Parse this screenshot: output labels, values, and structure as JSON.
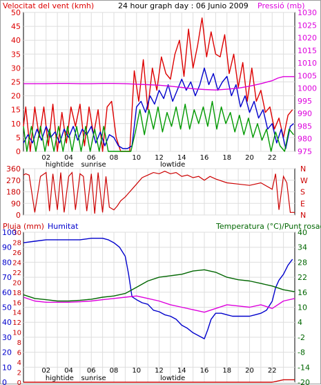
{
  "colors": {
    "wind_gust": "#dd0000",
    "wind_avg": "#0000cc",
    "wind_dir": "#009900",
    "pressure": "#dd00dd",
    "humidity": "#0000cc",
    "temperature": "#006600",
    "dewpoint": "#dd00dd",
    "rain": "#cc0000",
    "direction": "#cc0000",
    "frame": "#000000",
    "grid": "#dddddd"
  },
  "chart_data": [
    {
      "type": "line",
      "title": "24 hour graph day : 06 Junio 2009",
      "ylabel": "Velocitat del vent (kmh)",
      "ylabel_right": "Pressió (mb)",
      "ylim": [
        0,
        50
      ],
      "ylim_right": [
        975,
        1030
      ],
      "y_ticks": [
        "0",
        "5",
        "10",
        "15",
        "20",
        "25",
        "30",
        "35",
        "40",
        "45",
        "50"
      ],
      "y_ticks_right": [
        "975",
        "980",
        "985",
        "990",
        "995",
        "1000",
        "1005",
        "1010",
        "1015",
        "1020",
        "1025",
        "1030"
      ],
      "x_ticks": [
        "02",
        "04",
        "06",
        "08",
        "10",
        "12",
        "14",
        "16",
        "18",
        "20",
        "22"
      ],
      "x_annotations": [
        {
          "hour": 3.2,
          "text": "hightide"
        },
        {
          "hour": 6.2,
          "text": "sunrise"
        },
        {
          "hour": 13.2,
          "text": "lowtide"
        }
      ],
      "x_range": [
        0,
        24
      ],
      "grid": true,
      "series": [
        {
          "name": "Velocitat del vent",
          "color_key": "wind_gust",
          "axis": "left",
          "x": [
            0,
            0.2,
            0.6,
            1.0,
            1.4,
            1.8,
            2.2,
            2.6,
            3.0,
            3.4,
            3.8,
            4.2,
            4.6,
            5.0,
            5.4,
            5.8,
            6.2,
            6.6,
            7.0,
            7.4,
            7.8,
            8.2,
            8.6,
            9.0,
            9.4,
            9.8,
            10.2,
            10.6,
            11.0,
            11.4,
            11.8,
            12.2,
            12.6,
            13.0,
            13.4,
            13.8,
            14.2,
            14.6,
            15.0,
            15.4,
            15.8,
            16.2,
            16.6,
            17.0,
            17.4,
            17.8,
            18.2,
            18.6,
            19.0,
            19.4,
            19.8,
            20.2,
            20.6,
            21.0,
            21.4,
            21.8,
            22.2,
            22.6,
            23.0,
            23.4,
            23.8
          ],
          "y": [
            9,
            16,
            0,
            16,
            5,
            16,
            2,
            17,
            0,
            14,
            3,
            16,
            9,
            17,
            2,
            16,
            6,
            15,
            0,
            16,
            18,
            5,
            0,
            0,
            0,
            29,
            18,
            33,
            15,
            30,
            22,
            34,
            28,
            26,
            35,
            40,
            27,
            44,
            30,
            38,
            48,
            34,
            43,
            35,
            34,
            42,
            28,
            35,
            23,
            32,
            18,
            30,
            18,
            22,
            14,
            16,
            8,
            12,
            5,
            13,
            15
          ]
        },
        {
          "name": "wind avg",
          "color_key": "wind_avg",
          "axis": "left",
          "x": [
            0,
            0.4,
            0.8,
            1.2,
            1.6,
            2.0,
            2.4,
            2.8,
            3.2,
            3.6,
            4.0,
            4.4,
            4.8,
            5.2,
            5.6,
            6.0,
            6.4,
            6.8,
            7.2,
            7.6,
            8.0,
            8.4,
            8.8,
            9.2,
            9.6,
            10.0,
            10.4,
            10.8,
            11.2,
            11.6,
            12.0,
            12.4,
            12.8,
            13.2,
            13.6,
            14.0,
            14.4,
            14.8,
            15.2,
            15.6,
            16.0,
            16.4,
            16.8,
            17.2,
            17.6,
            18.0,
            18.4,
            18.8,
            19.2,
            19.6,
            20.0,
            20.4,
            20.8,
            21.2,
            21.6,
            22.0,
            22.4,
            22.8,
            23.2,
            23.6,
            23.9
          ],
          "y": [
            3,
            6,
            3,
            8,
            4,
            9,
            5,
            7,
            3,
            8,
            5,
            9,
            4,
            8,
            6,
            9,
            3,
            7,
            2,
            6,
            5,
            2,
            1,
            1,
            2,
            16,
            18,
            14,
            20,
            17,
            22,
            19,
            24,
            18,
            22,
            26,
            22,
            25,
            20,
            24,
            30,
            24,
            28,
            22,
            25,
            27,
            20,
            24,
            16,
            20,
            14,
            18,
            12,
            15,
            8,
            10,
            3,
            8,
            1,
            9,
            10
          ]
        },
        {
          "name": "wind dir",
          "color_key": "wind_dir",
          "axis": "left",
          "x": [
            0,
            0.3,
            0.7,
            1.1,
            1.5,
            1.9,
            2.3,
            2.7,
            3.1,
            3.5,
            3.9,
            4.3,
            4.7,
            5.1,
            5.5,
            5.9,
            6.3,
            6.7,
            7.1,
            7.5,
            7.9,
            8.3,
            8.7,
            9.1,
            9.5,
            9.9,
            10.3,
            10.7,
            11.1,
            11.5,
            11.9,
            12.3,
            12.7,
            13.1,
            13.5,
            13.9,
            14.3,
            14.7,
            15.1,
            15.5,
            15.9,
            16.3,
            16.7,
            17.1,
            17.5,
            17.9,
            18.3,
            18.7,
            19.1,
            19.5,
            19.9,
            20.3,
            20.7,
            21.1,
            21.5,
            21.9,
            22.3,
            22.7,
            23.1,
            23.5,
            23.9
          ],
          "y": [
            9,
            0,
            9,
            0,
            9,
            0,
            8,
            0,
            9,
            0,
            9,
            0,
            9,
            0,
            9,
            0,
            8,
            0,
            9,
            0,
            0,
            0,
            0,
            0,
            0,
            7,
            15,
            6,
            15,
            8,
            16,
            7,
            14,
            9,
            16,
            8,
            17,
            8,
            15,
            10,
            16,
            9,
            18,
            8,
            16,
            10,
            14,
            7,
            13,
            6,
            12,
            5,
            10,
            4,
            8,
            0,
            7,
            2,
            0,
            8,
            6
          ]
        },
        {
          "name": "Pressió",
          "color_key": "pressure",
          "axis": "right",
          "x": [
            0,
            1,
            2,
            3,
            4,
            5,
            6,
            7,
            8,
            9,
            10,
            11,
            12,
            13,
            14,
            15,
            16,
            17,
            18,
            19,
            20,
            21,
            22,
            22.5,
            23,
            24
          ],
          "y": [
            1001.8,
            1001.8,
            1001.8,
            1001.9,
            1001.9,
            1001.8,
            1001.8,
            1001.9,
            1001.9,
            1001.8,
            1001.6,
            1001.4,
            1001.2,
            1000.8,
            1000.3,
            999.8,
            999.5,
            999.3,
            999.6,
            1000.0,
            1000.8,
            1001.8,
            1003.0,
            1004.0,
            1004.6,
            1004.6
          ]
        }
      ]
    },
    {
      "type": "line",
      "ylabel_right": "N W S E N",
      "dir_labels": [
        "N",
        "W",
        "S",
        "E",
        "N"
      ],
      "y_ticks": [
        "0",
        "90",
        "180",
        "270",
        "360"
      ],
      "ylim": [
        0,
        360
      ],
      "x_range": [
        0,
        24
      ],
      "grid": true,
      "series": [
        {
          "name": "direction",
          "color_key": "direction",
          "x": [
            0,
            0.2,
            0.5,
            1.0,
            1.5,
            2.0,
            2.3,
            2.6,
            3.0,
            3.3,
            3.6,
            4.0,
            4.3,
            4.6,
            5.0,
            5.3,
            5.6,
            6.0,
            6.3,
            6.6,
            7.0,
            7.3,
            7.6,
            8.0,
            8.3,
            8.6,
            9.0,
            9.3,
            9.6,
            10.0,
            10.5,
            11.0,
            11.5,
            12.0,
            12.5,
            13.0,
            13.5,
            14.0,
            14.5,
            15.0,
            15.5,
            16.0,
            16.5,
            17.0,
            18.0,
            19.0,
            20.0,
            21.0,
            22.0,
            22.3,
            22.6,
            23.0,
            23.3,
            23.6,
            24.0
          ],
          "y": [
            310,
            320,
            310,
            20,
            300,
            330,
            30,
            320,
            40,
            330,
            20,
            300,
            330,
            40,
            320,
            300,
            30,
            320,
            10,
            330,
            20,
            300,
            60,
            40,
            70,
            110,
            140,
            170,
            200,
            240,
            290,
            310,
            330,
            320,
            340,
            320,
            330,
            300,
            310,
            290,
            300,
            270,
            300,
            280,
            250,
            240,
            230,
            250,
            200,
            320,
            40,
            300,
            250,
            20,
            20
          ]
        }
      ]
    },
    {
      "type": "line",
      "ylabel": "Pluja (mm)",
      "ylabel_hum": "Humitat",
      "ylabel_right": "Temperatura (°C)/Punt rosada",
      "ylim": [
        0,
        30
      ],
      "ylim_hum": [
        0,
        100
      ],
      "ylim_right": [
        -20,
        40
      ],
      "y_ticks_rain": [
        "0",
        "2",
        "4",
        "6",
        "8",
        "10",
        "12",
        "14",
        "16",
        "18",
        "20",
        "22",
        "24",
        "26",
        "28",
        "30"
      ],
      "y_ticks_hum": [
        "0",
        "10",
        "20",
        "30",
        "40",
        "50",
        "60",
        "70",
        "80",
        "90",
        "100"
      ],
      "y_ticks_temp": [
        "-20",
        "-14",
        "-8",
        "-2",
        "4",
        "10",
        "16",
        "22",
        "28",
        "34",
        "40"
      ],
      "x_ticks": [
        "02",
        "04",
        "06",
        "08",
        "10",
        "12",
        "14",
        "16",
        "18",
        "20",
        "22"
      ],
      "x_annotations": [
        {
          "hour": 3.2,
          "text": "hightide"
        },
        {
          "hour": 6.2,
          "text": "sunrise"
        },
        {
          "hour": 13.2,
          "text": "lowtide"
        }
      ],
      "x_range": [
        0,
        24
      ],
      "grid": true,
      "series": [
        {
          "name": "Humitat",
          "color_key": "humidity",
          "axis": "hum",
          "x": [
            0,
            1,
            2,
            3,
            4,
            5,
            6,
            7,
            7.5,
            8,
            8.5,
            9,
            9.3,
            9.6,
            10,
            10.5,
            11,
            11.5,
            12,
            12.5,
            13,
            13.5,
            14,
            14.5,
            15,
            15.5,
            16,
            16.3,
            16.6,
            17,
            17.5,
            18,
            18.5,
            19,
            19.5,
            20,
            20.5,
            21,
            21.5,
            22,
            22.3,
            22.6,
            23,
            23.4,
            23.8
          ],
          "y": [
            93,
            94,
            95,
            95,
            95,
            95,
            96,
            96,
            95,
            93,
            90,
            84,
            72,
            57,
            55,
            53,
            52,
            48,
            47,
            45,
            44,
            42,
            38,
            36,
            33,
            31,
            29,
            35,
            42,
            46,
            46,
            45,
            44,
            44,
            44,
            44,
            45,
            46,
            48,
            54,
            63,
            68,
            72,
            78,
            82
          ]
        },
        {
          "name": "Temperatura",
          "color_key": "temperature",
          "axis": "temp",
          "x": [
            0,
            1,
            2,
            3,
            4,
            5,
            6,
            7,
            8,
            9,
            10,
            11,
            12,
            13,
            14,
            15,
            16,
            17,
            18,
            19,
            20,
            21,
            22,
            23,
            24
          ],
          "y": [
            15,
            13.5,
            13,
            12.5,
            12.5,
            12.8,
            13.2,
            14,
            14.5,
            15.5,
            18,
            20.5,
            22,
            22.6,
            23.2,
            24.5,
            25,
            24,
            22,
            21,
            20.5,
            19.5,
            18.5,
            17,
            16.2
          ]
        },
        {
          "name": "Punt rosada",
          "color_key": "dewpoint",
          "axis": "temp",
          "x": [
            0,
            1,
            2,
            3,
            4,
            5,
            6,
            7,
            8,
            9,
            10,
            11,
            12,
            13,
            14,
            15,
            16,
            17,
            18,
            19,
            20,
            21,
            22,
            23,
            24
          ],
          "y": [
            14,
            12.5,
            12,
            12,
            12,
            12.2,
            12.5,
            13,
            13.5,
            14,
            14.5,
            13.5,
            12.5,
            11,
            10,
            9,
            8,
            9.5,
            11,
            10.5,
            10,
            11,
            9.5,
            12.5,
            13.5
          ]
        },
        {
          "name": "Pluja",
          "color_key": "rain",
          "axis": "rain",
          "x": [
            0,
            22,
            23,
            24
          ],
          "y": [
            0,
            0,
            0.5,
            0.5
          ]
        }
      ]
    }
  ]
}
